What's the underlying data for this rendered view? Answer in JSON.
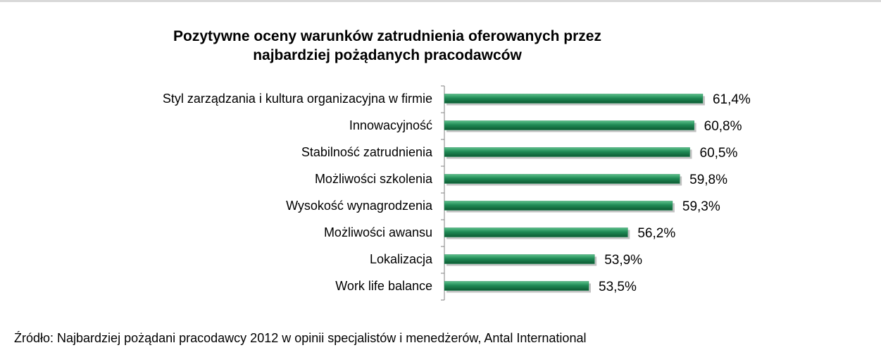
{
  "chart_data": {
    "type": "bar",
    "orientation": "horizontal",
    "title_lines": [
      "Pozytywne oceny warunków zatrudnienia oferowanych przez",
      "najbardziej pożądanych pracodawców"
    ],
    "categories": [
      "Styl zarządzania i kultura organizacyjna w firmie",
      "Innowacyjność",
      "Stabilność zatrudnienia",
      "Możliwości szkolenia",
      "Wysokość wynagrodzenia",
      "Możliwości awansu",
      "Lokalizacja",
      "Work life balance"
    ],
    "values": [
      61.4,
      60.8,
      60.5,
      59.8,
      59.3,
      56.2,
      53.9,
      53.5
    ],
    "value_labels": [
      "61,4%",
      "60,8%",
      "60,5%",
      "59,8%",
      "59,3%",
      "56,2%",
      "53,9%",
      "53,5%"
    ],
    "bar_color": "#1f8a55",
    "grid": false,
    "legend": "none"
  },
  "source": "Źródło: Najbardziej pożądani pracodawcy 2012 w opinii specjalistów i menedżerów, Antal International"
}
